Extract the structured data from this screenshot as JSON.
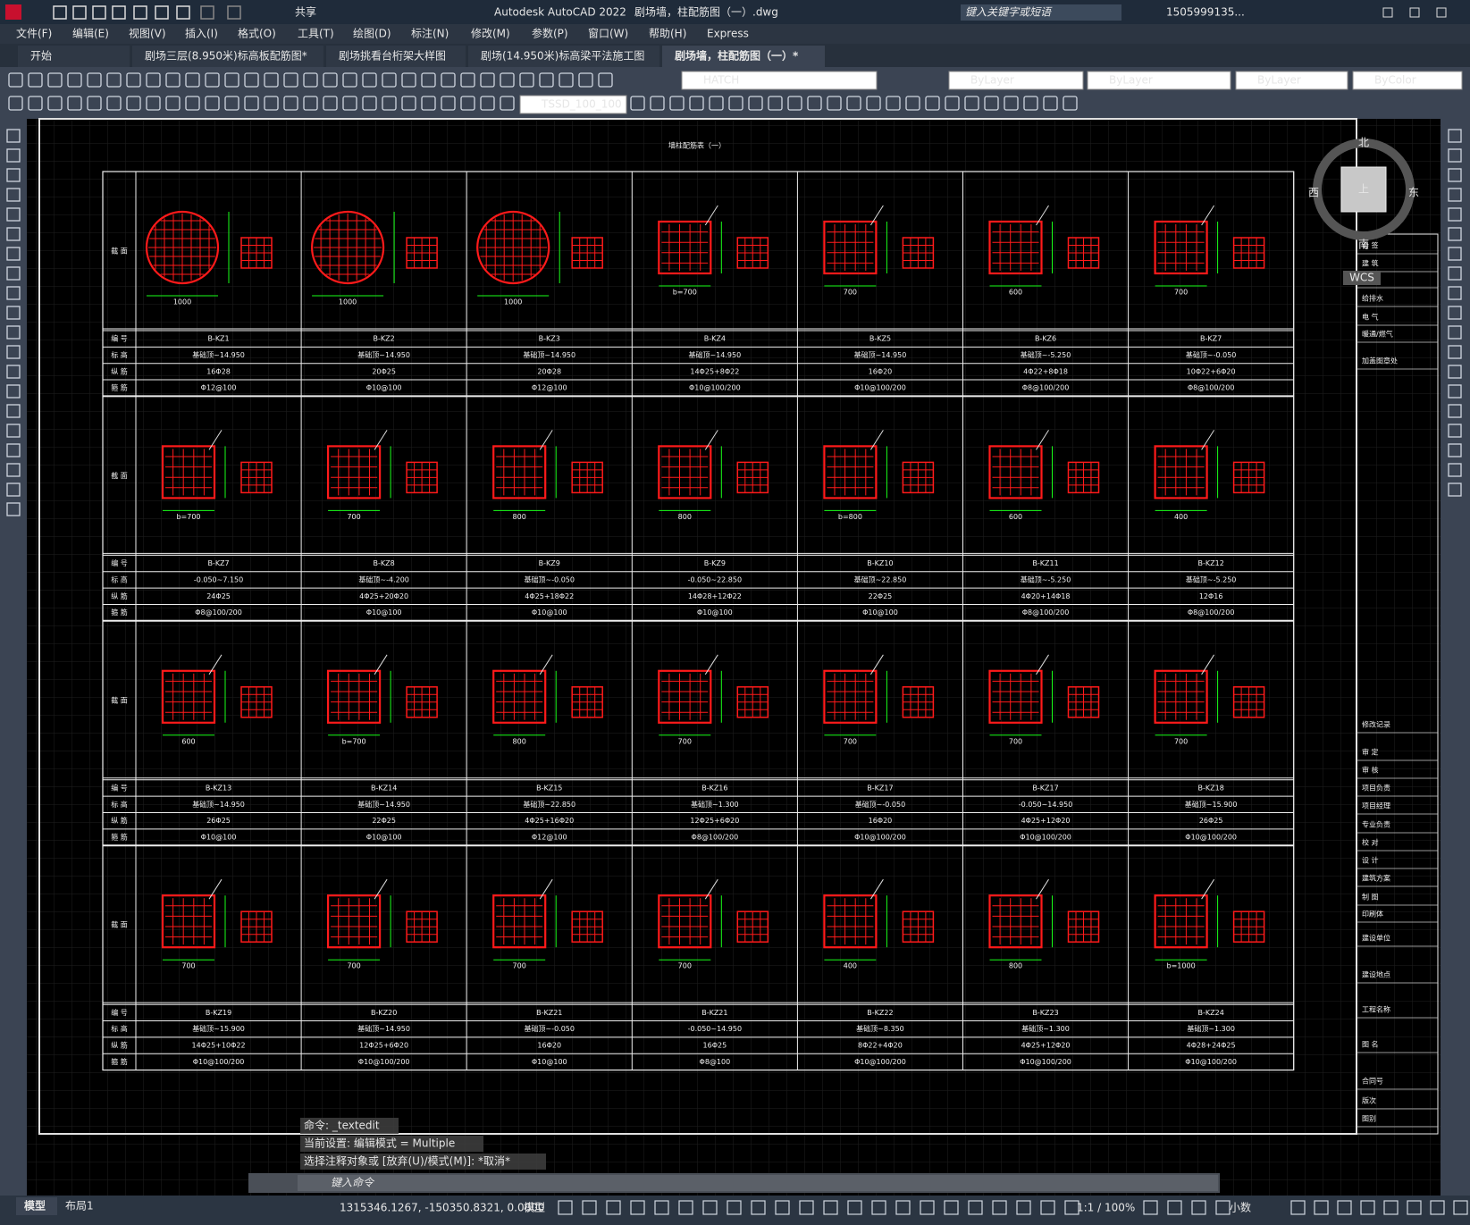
{
  "title_bar": {
    "app": "Autodesk AutoCAD 2022",
    "file": "剧场墙，柱配筋图（一）.dwg",
    "share": "共享",
    "search": "键入关键字或短语",
    "user": "1505999135..."
  },
  "menu": [
    "文件(F)",
    "编辑(E)",
    "视图(V)",
    "插入(I)",
    "格式(O)",
    "工具(T)",
    "绘图(D)",
    "标注(N)",
    "修改(M)",
    "参数(P)",
    "窗口(W)",
    "帮助(H)",
    "Express"
  ],
  "tabs": [
    "开始",
    "剧场三层(8.950米)标高板配筋图*",
    "剧场挑看台桁架大样图",
    "剧场(14.950米)标高梁平法施工图",
    "剧场墙，柱配筋图（一）*"
  ],
  "toolbar": {
    "hatch": "HATCH",
    "color": "ByLayer",
    "linetype": "ByLayer",
    "lineweight": "ByLayer",
    "plotstyle": "ByColor",
    "dimstyle": "TSSD_100_100"
  },
  "drawing": {
    "title": "墙柱配筋表（一）",
    "section_label": "截 面",
    "row_labels": [
      "编 号",
      "标 高",
      "纵 筋",
      "箍 筋"
    ],
    "blocks": [
      {
        "sections": [
          {
            "shape": "circle",
            "width": "1000"
          },
          {
            "shape": "circle",
            "width": "1000"
          },
          {
            "shape": "circle",
            "width": "1000"
          },
          {
            "shape": "rect",
            "width": "b=700"
          },
          {
            "shape": "rect",
            "width": "700"
          },
          {
            "shape": "rect",
            "width": "600"
          },
          {
            "shape": "rect",
            "width": "700"
          }
        ],
        "rows": [
          [
            "B-KZ1",
            "B-KZ2",
            "B-KZ3",
            "B-KZ4",
            "B-KZ5",
            "B-KZ6",
            "B-KZ7"
          ],
          [
            "基础顶~14.950",
            "基础顶~14.950",
            "基础顶~14.950",
            "基础顶~14.950",
            "基础顶~14.950",
            "基础顶~-5.250",
            "基础顶~-0.050"
          ],
          [
            "16Φ28",
            "20Φ25",
            "20Φ28",
            "14Φ25+8Φ22",
            "16Φ20",
            "4Φ22+8Φ18",
            "10Φ22+6Φ20"
          ],
          [
            "Φ12@100",
            "Φ10@100",
            "Φ12@100",
            "Φ10@100/200",
            "Φ10@100/200",
            "Φ8@100/200",
            "Φ8@100/200"
          ]
        ]
      },
      {
        "sections": [
          {
            "shape": "rect",
            "width": "b=700"
          },
          {
            "shape": "rect",
            "width": "700"
          },
          {
            "shape": "rect",
            "width": "800"
          },
          {
            "shape": "rect",
            "width": "800"
          },
          {
            "shape": "rect",
            "width": "b=800"
          },
          {
            "shape": "rect",
            "width": "600"
          },
          {
            "shape": "rect",
            "width": "400"
          }
        ],
        "rows": [
          [
            "B-KZ7",
            "B-KZ8",
            "B-KZ9",
            "B-KZ9",
            "B-KZ10",
            "B-KZ11",
            "B-KZ12"
          ],
          [
            "-0.050~7.150",
            "基础顶~-4.200",
            "基础顶~-0.050",
            "-0.050~22.850",
            "基础顶~22.850",
            "基础顶~-5.250",
            "基础顶~-5.250"
          ],
          [
            "24Φ25",
            "4Φ25+20Φ20",
            "4Φ25+18Φ22",
            "14Φ28+12Φ22",
            "22Φ25",
            "4Φ20+14Φ18",
            "12Φ16"
          ],
          [
            "Φ8@100/200",
            "Φ10@100",
            "Φ10@100",
            "Φ10@100",
            "Φ10@100",
            "Φ8@100/200",
            "Φ8@100/200"
          ]
        ]
      },
      {
        "sections": [
          {
            "shape": "rect",
            "width": "600"
          },
          {
            "shape": "rect",
            "width": "b=700"
          },
          {
            "shape": "rect",
            "width": "800"
          },
          {
            "shape": "rect",
            "width": "700"
          },
          {
            "shape": "rect",
            "width": "700"
          },
          {
            "shape": "rect",
            "width": "700"
          },
          {
            "shape": "rect",
            "width": "700"
          }
        ],
        "rows": [
          [
            "B-KZ13",
            "B-KZ14",
            "B-KZ15",
            "B-KZ16",
            "B-KZ17",
            "B-KZ17",
            "B-KZ18"
          ],
          [
            "基础顶~14.950",
            "基础顶~14.950",
            "基础顶~22.850",
            "基础顶~1.300",
            "基础顶~-0.050",
            "-0.050~14.950",
            "基础顶~15.900"
          ],
          [
            "26Φ25",
            "22Φ25",
            "4Φ25+16Φ20",
            "12Φ25+6Φ20",
            "16Φ20",
            "4Φ25+12Φ20",
            "26Φ25"
          ],
          [
            "Φ10@100",
            "Φ10@100",
            "Φ12@100",
            "Φ8@100/200",
            "Φ10@100/200",
            "Φ10@100/200",
            "Φ10@100/200"
          ]
        ]
      },
      {
        "sections": [
          {
            "shape": "rect",
            "width": "700"
          },
          {
            "shape": "rect",
            "width": "700"
          },
          {
            "shape": "rect",
            "width": "700"
          },
          {
            "shape": "rect",
            "width": "700"
          },
          {
            "shape": "rect",
            "width": "400"
          },
          {
            "shape": "rect",
            "width": "800"
          },
          {
            "shape": "rect",
            "width": "b=1000"
          }
        ],
        "rows": [
          [
            "B-KZ19",
            "B-KZ20",
            "B-KZ21",
            "B-KZ21",
            "B-KZ22",
            "B-KZ23",
            "B-KZ24"
          ],
          [
            "基础顶~15.900",
            "基础顶~14.950",
            "基础顶~-0.050",
            "-0.050~14.950",
            "基础顶~8.350",
            "基础顶~1.300",
            "基础顶~1.300"
          ],
          [
            "14Φ25+10Φ22",
            "12Φ25+6Φ20",
            "16Φ20",
            "16Φ25",
            "8Φ22+4Φ20",
            "4Φ25+12Φ20",
            "4Φ28+24Φ25"
          ],
          [
            "Φ10@100/200",
            "Φ10@100/200",
            "Φ10@100",
            "Φ8@100",
            "Φ10@100/200",
            "Φ10@100/200",
            "Φ10@100/200"
          ]
        ]
      }
    ]
  },
  "viewcube": {
    "north": "北",
    "south": "南",
    "east": "东",
    "west": "西",
    "top": "上",
    "ucs": "WCS"
  },
  "title_block": [
    "会 签",
    "建 筑",
    "结 构",
    "给排水",
    "电 气",
    "暖通/燃气",
    "加盖图章处",
    "修改记录",
    "审 定",
    "审 核",
    "项目负责",
    "项目经理",
    "专业负责",
    "校 对",
    "设 计",
    "建筑方案",
    "制 图",
    "印刷体",
    "建设单位",
    "建设地点",
    "工程名称",
    "图 名",
    "合同号",
    "版次",
    "图别"
  ],
  "command": {
    "history": [
      "命令: _textedit",
      "当前设置: 编辑模式 = Multiple",
      "选择注释对象或 [放弃(U)/模式(M)]: *取消*"
    ],
    "prompt": "键入命令"
  },
  "status": {
    "tabs": [
      "模型",
      "布局1"
    ],
    "coords": "1315346.1267, -150350.8321, 0.0000",
    "space": "模型",
    "scale": "1:1 / 100%",
    "units": "小数"
  }
}
